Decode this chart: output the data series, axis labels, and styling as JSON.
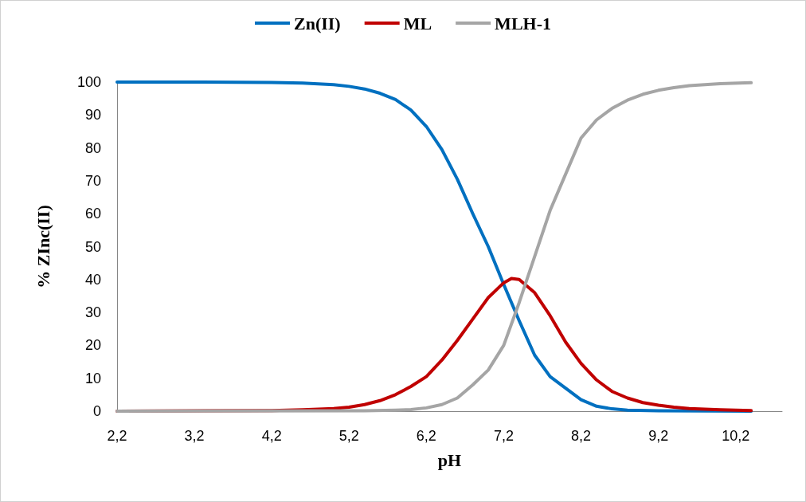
{
  "chart_data": {
    "type": "line",
    "xlabel": "pH",
    "ylabel": "% ZInc(II)",
    "xlim": [
      2.2,
      10.8
    ],
    "xticks": [
      {
        "value": 2.2,
        "label": "2,2"
      },
      {
        "value": 3.2,
        "label": "3,2"
      },
      {
        "value": 4.2,
        "label": "4,2"
      },
      {
        "value": 5.2,
        "label": "5,2"
      },
      {
        "value": 6.2,
        "label": "6,2"
      },
      {
        "value": 7.2,
        "label": "7,2"
      },
      {
        "value": 8.2,
        "label": "8,2"
      },
      {
        "value": 9.2,
        "label": "9,2"
      },
      {
        "value": 10.2,
        "label": "10,2"
      }
    ],
    "ylim": [
      0,
      100
    ],
    "yticks": [
      0,
      10,
      20,
      30,
      40,
      50,
      60,
      70,
      80,
      90,
      100
    ],
    "grid": false,
    "legend": "top",
    "marker": "none",
    "line_style": "solid",
    "series": [
      {
        "name": "Zn(II)",
        "color": "#0070c0",
        "x": [
          2.2,
          3.2,
          4.2,
          4.6,
          5.0,
          5.2,
          5.4,
          5.6,
          5.8,
          6.0,
          6.2,
          6.4,
          6.6,
          6.8,
          7.0,
          7.2,
          7.4,
          7.6,
          7.8,
          8.0,
          8.2,
          8.4,
          8.6,
          8.8,
          9.2,
          10.4
        ],
        "values": [
          100,
          100,
          99.9,
          99.7,
          99.2,
          98.7,
          97.9,
          96.6,
          94.7,
          91.5,
          86.5,
          79.5,
          70.5,
          60,
          50,
          38.5,
          27.5,
          17,
          10.5,
          7,
          3.5,
          1.5,
          0.7,
          0.3,
          0.1,
          0
        ]
      },
      {
        "name": "ML",
        "color": "#c00000",
        "x": [
          2.2,
          4.2,
          4.6,
          5.0,
          5.2,
          5.4,
          5.6,
          5.8,
          6.0,
          6.2,
          6.4,
          6.6,
          6.8,
          7.0,
          7.2,
          7.3,
          7.4,
          7.6,
          7.8,
          8.0,
          8.2,
          8.4,
          8.6,
          8.8,
          9.0,
          9.2,
          9.4,
          9.6,
          10.0,
          10.4
        ],
        "values": [
          0,
          0.2,
          0.4,
          0.8,
          1.2,
          2,
          3.2,
          5,
          7.5,
          10.5,
          15.5,
          21.5,
          28,
          34.5,
          39,
          40.3,
          40,
          36,
          29,
          21,
          14.5,
          9.5,
          6,
          4,
          2.6,
          1.8,
          1.2,
          0.8,
          0.4,
          0.2
        ]
      },
      {
        "name": "MLH-1",
        "color": "#a5a5a5",
        "x": [
          2.2,
          5.4,
          5.8,
          6.0,
          6.2,
          6.4,
          6.6,
          6.8,
          7.0,
          7.2,
          7.4,
          7.6,
          7.8,
          8.0,
          8.2,
          8.4,
          8.6,
          8.8,
          9.0,
          9.2,
          9.4,
          9.6,
          10.0,
          10.4
        ],
        "values": [
          0,
          0.1,
          0.3,
          0.5,
          1,
          2,
          4,
          8,
          12.5,
          20,
          33,
          47,
          61,
          72,
          83,
          88.5,
          92,
          94.5,
          96.3,
          97.5,
          98.3,
          98.9,
          99.5,
          99.8
        ]
      }
    ]
  }
}
